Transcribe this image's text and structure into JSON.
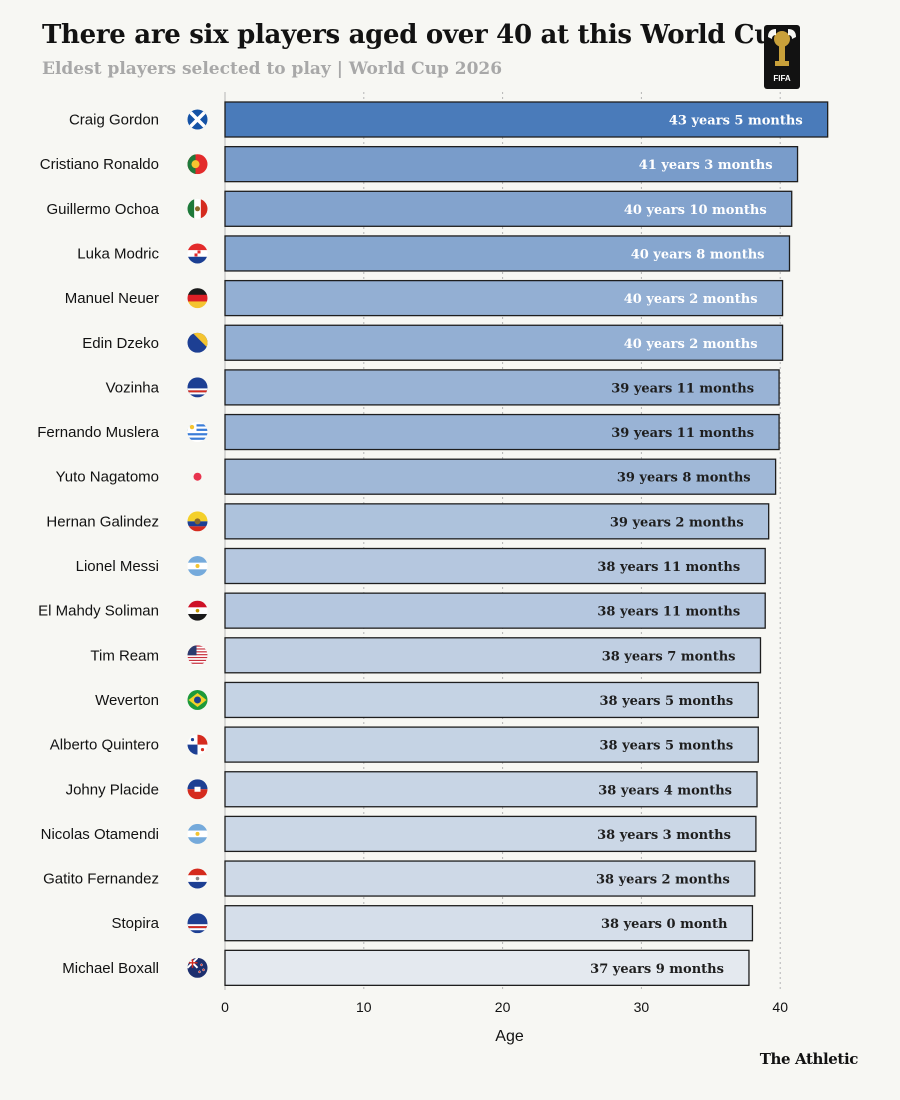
{
  "header": {
    "title": "There are six players aged over 40 at this World Cup",
    "subtitle": "Eldest players selected to play | World Cup 2026"
  },
  "logo": {
    "text": "FIFA"
  },
  "footer": {
    "brand": "The Athletic"
  },
  "colors": {
    "background": "#f7f7f3",
    "bar_darkest": "#4a7bba",
    "bar_lightest": "#e4e9ef",
    "bar_stroke": "#1e1e1e",
    "grid": "#b5b5b5",
    "label_light": "#ffffff",
    "label_dark": "#1e1e1e"
  },
  "chart_data": {
    "type": "bar",
    "orientation": "horizontal",
    "title": "There are six players aged over 40 at this World Cup",
    "subtitle": "Eldest players selected to play | World Cup 2026",
    "xlabel": "Age",
    "ylabel": "",
    "xlim": [
      0,
      45
    ],
    "xticks": [
      0,
      10,
      20,
      30,
      40
    ],
    "grid": "vertical dotted",
    "categories": [
      "Craig Gordon",
      "Cristiano Ronaldo",
      "Guillermo Ochoa",
      "Luka Modric",
      "Manuel Neuer",
      "Edin Dzeko",
      "Vozinha",
      "Fernando Muslera",
      "Yuto Nagatomo",
      "Hernan Galindez",
      "Lionel Messi",
      "El Mahdy Soliman",
      "Tim Ream",
      "Weverton",
      "Alberto Quintero",
      "Johny Placide",
      "Nicolas Otamendi",
      "Gatito Fernandez",
      "Stopira",
      "Michael Boxall"
    ],
    "values": [
      43.42,
      41.25,
      40.83,
      40.67,
      40.17,
      40.17,
      39.92,
      39.92,
      39.67,
      39.17,
      38.92,
      38.92,
      38.58,
      38.42,
      38.42,
      38.33,
      38.25,
      38.17,
      38.0,
      37.75
    ],
    "data_labels": [
      "43 years 5 months",
      "41 years 3 months",
      "40 years 10 months",
      "40 years 8 months",
      "40 years 2 months",
      "40 years 2 months",
      "39 years 11 months",
      "39 years 11 months",
      "39 years 8 months",
      "39 years 2 months",
      "38 years 11 months",
      "38 years 11 months",
      "38 years 7 months",
      "38 years 5 months",
      "38 years 5 months",
      "38 years 4 months",
      "38 years 3 months",
      "38 years 2 months",
      "38 years 0 month",
      "37 years 9 months"
    ],
    "flags": [
      "scotland-flag-icon",
      "portugal-flag-icon",
      "mexico-flag-icon",
      "croatia-flag-icon",
      "germany-flag-icon",
      "bosnia-flag-icon",
      "cape-verde-flag-icon",
      "uruguay-flag-icon",
      "japan-flag-icon",
      "ecuador-flag-icon",
      "argentina-flag-icon",
      "egypt-flag-icon",
      "usa-flag-icon",
      "brazil-flag-icon",
      "panama-flag-icon",
      "haiti-flag-icon",
      "argentina-flag-icon",
      "paraguay-flag-icon",
      "cape-verde-flag-icon",
      "new-zealand-flag-icon"
    ]
  }
}
